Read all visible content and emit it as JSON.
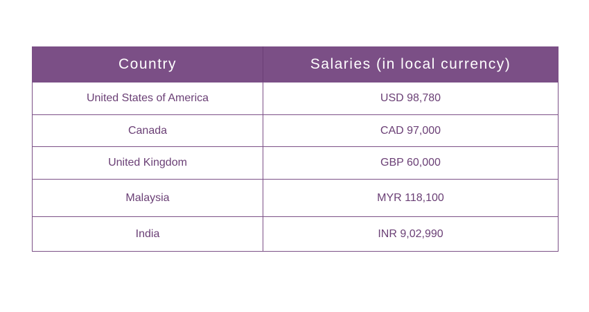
{
  "table": {
    "headers": {
      "country": "Country",
      "salary": "Salaries (in local currency)"
    },
    "rows": [
      {
        "country": "United States of America",
        "salary": "USD 98,780"
      },
      {
        "country": "Canada",
        "salary": "CAD 97,000"
      },
      {
        "country": "United Kingdom",
        "salary": "GBP 60,000"
      },
      {
        "country": "Malaysia",
        "salary": "MYR 118,100"
      },
      {
        "country": "India",
        "salary": "INR 9,02,990"
      }
    ]
  },
  "colors": {
    "header_background": "#7b4f86",
    "header_text": "#ffffff",
    "cell_text": "#6a3f75",
    "border": "#7b4f86"
  }
}
